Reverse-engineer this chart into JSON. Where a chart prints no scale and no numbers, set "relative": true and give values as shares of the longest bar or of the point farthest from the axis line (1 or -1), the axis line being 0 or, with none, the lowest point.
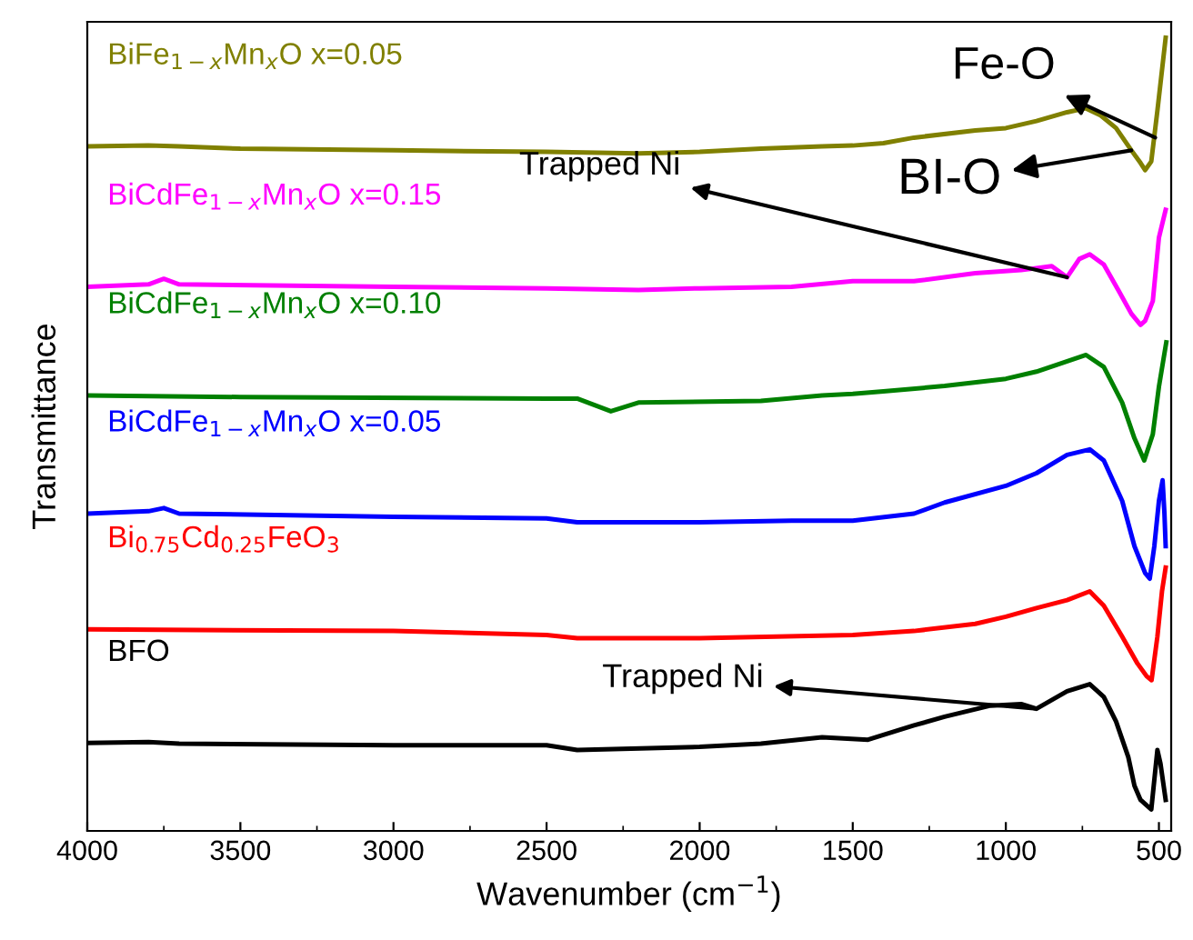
{
  "chart_data": {
    "type": "line",
    "relative": true,
    "xlabel": "Wavenumber (cm$^{−1}$)",
    "ylabel": "Transmittance",
    "xlim": [
      4000,
      460
    ],
    "xticks": [
      4000,
      3500,
      3000,
      2500,
      2000,
      1500,
      1000,
      500
    ],
    "tick_labels": "x",
    "grid": false,
    "series": [
      {
        "name": "BiFe$_{1−x}$Mn$_{x}$O x=0.05",
        "color": "#808000",
        "x": [
          4000,
          3800,
          3700,
          3500,
          3000,
          2500,
          2200,
          2000,
          1800,
          1600,
          1500,
          1400,
          1300,
          1100,
          1000,
          900,
          800,
          740,
          690,
          640,
          590,
          560,
          545,
          525,
          505,
          478
        ],
        "values": [
          0.863,
          0.864,
          0.863,
          0.86,
          0.858,
          0.856,
          0.854,
          0.856,
          0.86,
          0.863,
          0.864,
          0.867,
          0.874,
          0.883,
          0.886,
          0.895,
          0.906,
          0.911,
          0.902,
          0.886,
          0.858,
          0.842,
          0.833,
          0.844,
          0.908,
          1.0
        ]
      },
      {
        "name": "BiCdFe$_{1−x}$Mn$_{x}$O x=0.15",
        "color": "#ff00ff",
        "x": [
          4000,
          3800,
          3750,
          3700,
          3000,
          2500,
          2200,
          2000,
          1700,
          1500,
          1300,
          1100,
          950,
          850,
          800,
          760,
          726,
          680,
          630,
          590,
          560,
          545,
          520,
          500,
          478
        ],
        "values": [
          0.686,
          0.689,
          0.696,
          0.689,
          0.686,
          0.684,
          0.682,
          0.684,
          0.686,
          0.693,
          0.693,
          0.703,
          0.707,
          0.712,
          0.698,
          0.721,
          0.727,
          0.714,
          0.68,
          0.652,
          0.638,
          0.643,
          0.668,
          0.748,
          0.783
        ]
      },
      {
        "name": "BiCdFe$_{1−x}$Mn$_{x}$O x=0.10",
        "color": "#008000",
        "x": [
          4000,
          3500,
          2500,
          2400,
          2290,
          2200,
          1800,
          1600,
          1500,
          1400,
          1200,
          1000,
          900,
          738,
          680,
          620,
          580,
          548,
          520,
          500,
          476
        ],
        "values": [
          0.549,
          0.547,
          0.545,
          0.545,
          0.529,
          0.54,
          0.542,
          0.549,
          0.551,
          0.554,
          0.561,
          0.57,
          0.579,
          0.6,
          0.585,
          0.54,
          0.495,
          0.467,
          0.5,
          0.56,
          0.616
        ]
      },
      {
        "name": "BiCdFe$_{1−x}$Mn$_{x}$O x=0.05",
        "color": "#0000ff",
        "x": [
          4000,
          3800,
          3750,
          3700,
          3000,
          2500,
          2400,
          2000,
          1700,
          1500,
          1300,
          1200,
          1000,
          900,
          800,
          726,
          680,
          620,
          580,
          545,
          530,
          515,
          500,
          488,
          482,
          478
        ],
        "values": [
          0.4,
          0.403,
          0.407,
          0.4,
          0.396,
          0.394,
          0.389,
          0.389,
          0.391,
          0.391,
          0.4,
          0.414,
          0.435,
          0.451,
          0.474,
          0.481,
          0.467,
          0.416,
          0.359,
          0.325,
          0.318,
          0.359,
          0.416,
          0.442,
          0.4,
          0.359
        ]
      },
      {
        "name": "Bi$_{0.75}$Cd$_{0.25}$FeO$_{3}$",
        "color": "#ff0000",
        "x": [
          4000,
          3000,
          2500,
          2400,
          2000,
          1500,
          1300,
          1100,
          1000,
          900,
          800,
          726,
          680,
          620,
          570,
          540,
          524,
          505,
          490,
          478
        ],
        "values": [
          0.254,
          0.252,
          0.247,
          0.243,
          0.243,
          0.247,
          0.252,
          0.261,
          0.27,
          0.281,
          0.291,
          0.302,
          0.284,
          0.245,
          0.211,
          0.195,
          0.19,
          0.245,
          0.302,
          0.332
        ]
      },
      {
        "name": "BFO",
        "color": "#000000",
        "x": [
          4000,
          3800,
          3700,
          3000,
          2500,
          2400,
          2000,
          1800,
          1600,
          1450,
          1300,
          1200,
          1050,
          950,
          900,
          800,
          726,
          680,
          640,
          600,
          580,
          560,
          525,
          505,
          495,
          478
        ],
        "values": [
          0.111,
          0.112,
          0.11,
          0.108,
          0.108,
          0.102,
          0.106,
          0.11,
          0.118,
          0.115,
          0.133,
          0.144,
          0.158,
          0.16,
          0.154,
          0.176,
          0.185,
          0.169,
          0.138,
          0.093,
          0.057,
          0.039,
          0.027,
          0.102,
          0.085,
          0.039
        ]
      }
    ],
    "annotations": [
      {
        "text": "Fe-O",
        "x": 512,
        "y": 0.874
      },
      {
        "text": "BI-O",
        "x": 590,
        "y": 0.858
      },
      {
        "text": "Trapped Ni",
        "x": 800,
        "y": 0.698
      },
      {
        "text": "Trapped Ni",
        "x": 900,
        "y": 0.154
      }
    ]
  }
}
